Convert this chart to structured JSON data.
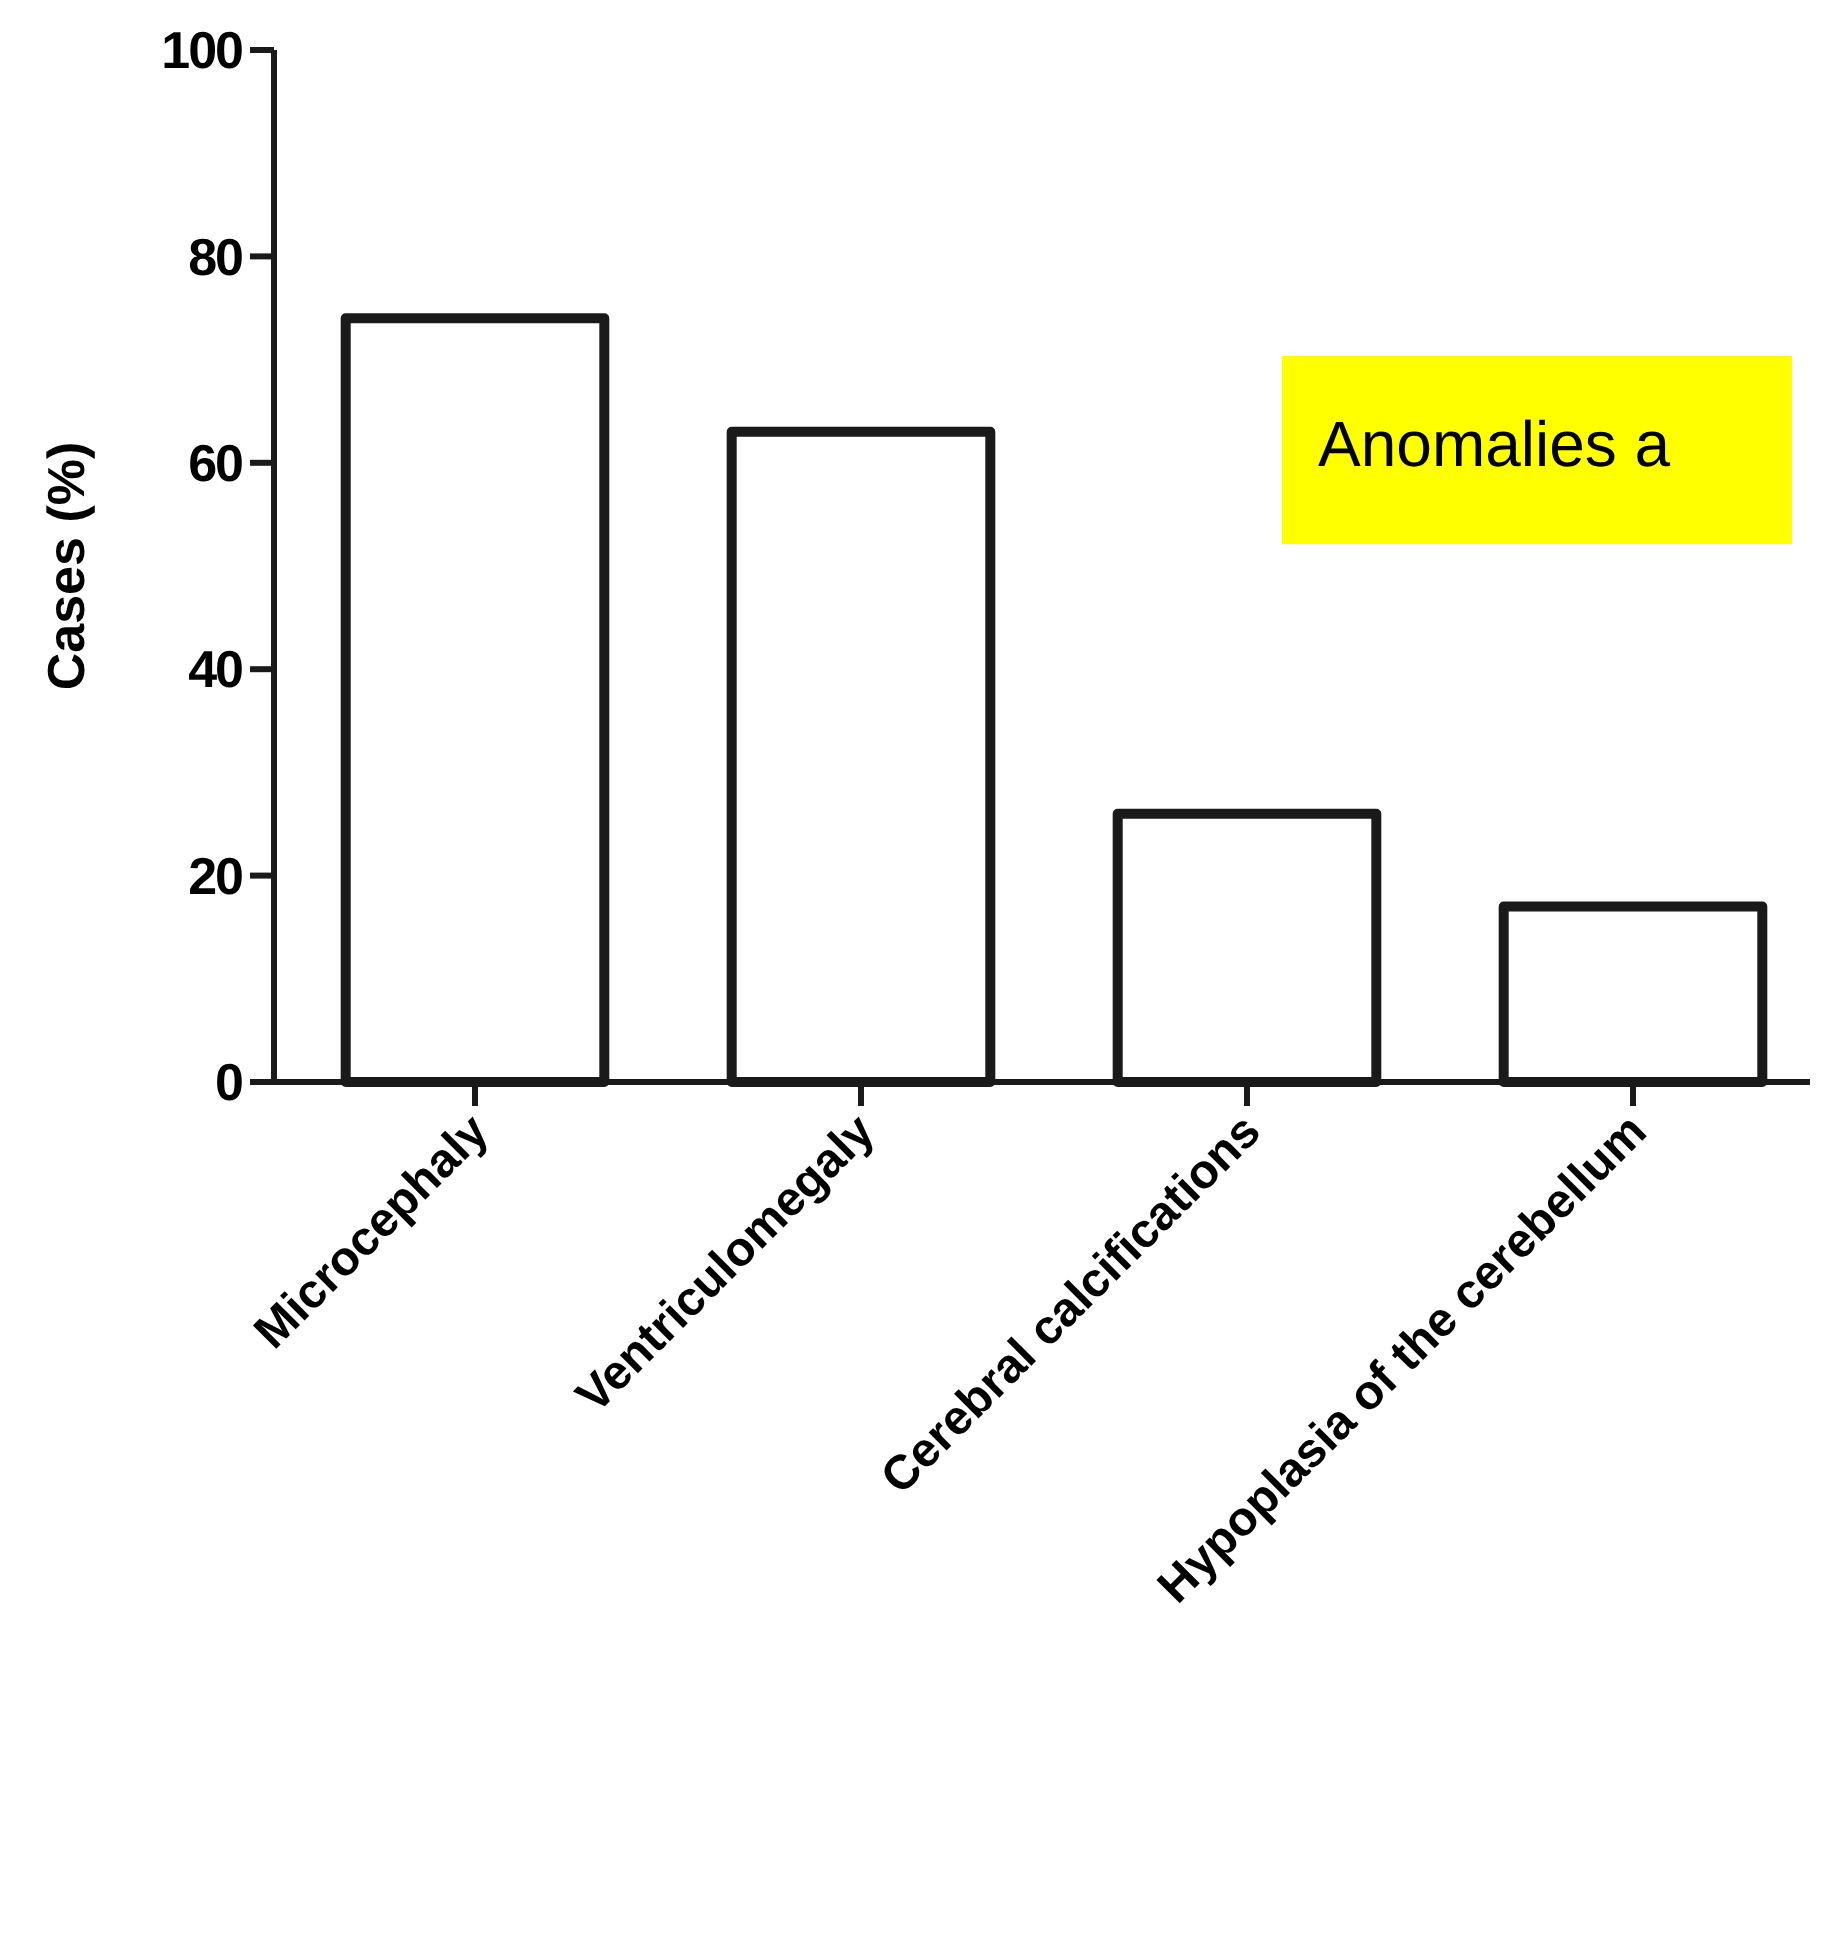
{
  "chart_data": {
    "type": "bar",
    "ylabel": "Cases (%)",
    "categories": [
      "Microcephaly",
      "Ventriculomegaly",
      "Cerebral calcifications",
      "Hypoplasia of the cerebellum"
    ],
    "values": [
      74,
      63,
      26,
      17
    ],
    "color": "#ffffff",
    "ylim": [
      0,
      100
    ],
    "yticks": [
      0,
      20,
      40,
      60,
      80,
      100
    ],
    "grid": false,
    "annotations": [
      "Anomalies a"
    ]
  }
}
